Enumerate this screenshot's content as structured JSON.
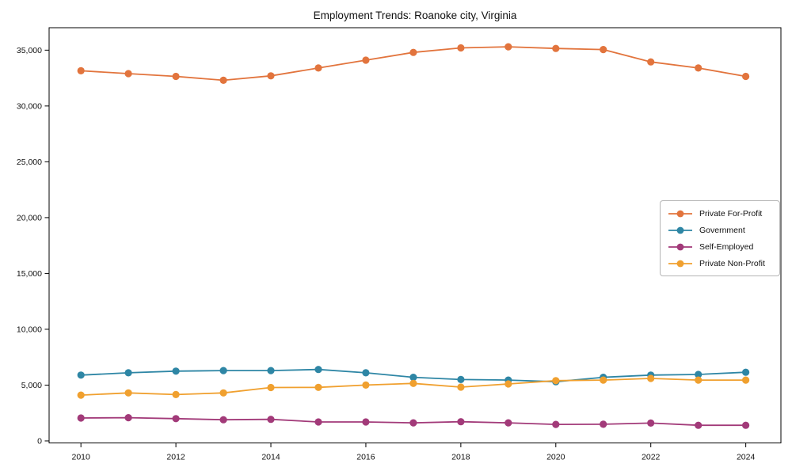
{
  "chart_data": {
    "type": "line",
    "title": "Employment Trends: Roanoke city, Virginia",
    "xlabel": "",
    "ylabel": "",
    "grid": false,
    "legend_position": "right-middle",
    "axis_color": "#000000",
    "xlim": [
      2009.33,
      2024.74
    ],
    "ylim": [
      -180,
      37010
    ],
    "x": [
      2010,
      2011,
      2012,
      2013,
      2014,
      2015,
      2016,
      2017,
      2018,
      2019,
      2020,
      2021,
      2022,
      2023,
      2024
    ],
    "series": [
      {
        "name": "Private For-Profit",
        "color": "#e2743d",
        "values": [
          33150,
          32900,
          32650,
          32300,
          32700,
          33400,
          34100,
          34800,
          35200,
          35300,
          35150,
          35050,
          33950,
          33400,
          32650
        ]
      },
      {
        "name": "Government",
        "color": "#2e86a5",
        "values": [
          5900,
          6100,
          6250,
          6300,
          6300,
          6400,
          6100,
          5700,
          5500,
          5450,
          5300,
          5700,
          5900,
          5950,
          6150
        ]
      },
      {
        "name": "Self-Employed",
        "color": "#a23a79",
        "values": [
          2050,
          2080,
          2000,
          1900,
          1930,
          1700,
          1700,
          1620,
          1720,
          1620,
          1480,
          1490,
          1600,
          1400,
          1400
        ]
      },
      {
        "name": "Private Non-Profit",
        "color": "#f0a02f",
        "values": [
          4100,
          4300,
          4150,
          4300,
          4780,
          4800,
          5000,
          5150,
          4820,
          5100,
          5400,
          5450,
          5600,
          5450,
          5450
        ]
      }
    ],
    "xticks": [
      {
        "value": 2010,
        "label": "2010"
      },
      {
        "value": 2012,
        "label": "2012"
      },
      {
        "value": 2014,
        "label": "2014"
      },
      {
        "value": 2016,
        "label": "2016"
      },
      {
        "value": 2018,
        "label": "2018"
      },
      {
        "value": 2020,
        "label": "2020"
      },
      {
        "value": 2022,
        "label": "2022"
      },
      {
        "value": 2024,
        "label": "2024"
      }
    ],
    "yticks": [
      {
        "value": 0,
        "label": "0"
      },
      {
        "value": 5000,
        "label": "5,000"
      },
      {
        "value": 10000,
        "label": "10,000"
      },
      {
        "value": 15000,
        "label": "15,000"
      },
      {
        "value": 20000,
        "label": "20,000"
      },
      {
        "value": 25000,
        "label": "25,000"
      },
      {
        "value": 30000,
        "label": "30,000"
      },
      {
        "value": 35000,
        "label": "35,000"
      }
    ]
  }
}
